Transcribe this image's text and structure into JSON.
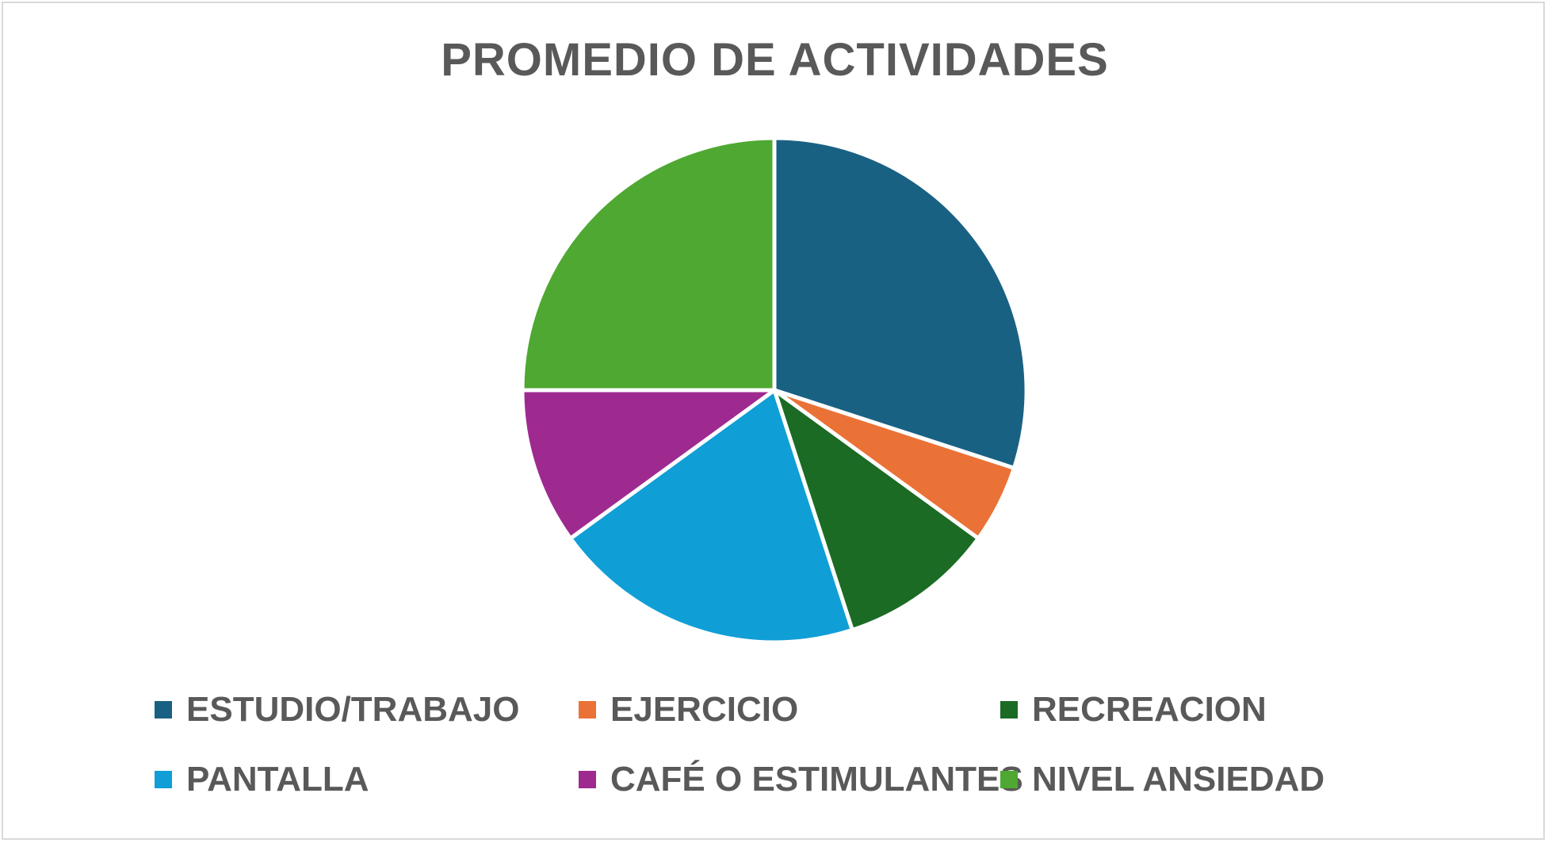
{
  "chart_data": {
    "type": "pie",
    "title": "PROMEDIO DE ACTIVIDADES",
    "legend_position": "bottom",
    "categories": [
      "ESTUDIO/TRABAJO",
      "EJERCICIO",
      "RECREACION",
      "PANTALLA",
      "CAFÉ O ESTIMULANTES",
      "NIVEL ANSIEDAD"
    ],
    "values": [
      30,
      5,
      10,
      20,
      10,
      25
    ],
    "colors": [
      "#196183",
      "#ea7236",
      "#1b6b24",
      "#109ed6",
      "#9e2a90",
      "#4ea831"
    ]
  }
}
